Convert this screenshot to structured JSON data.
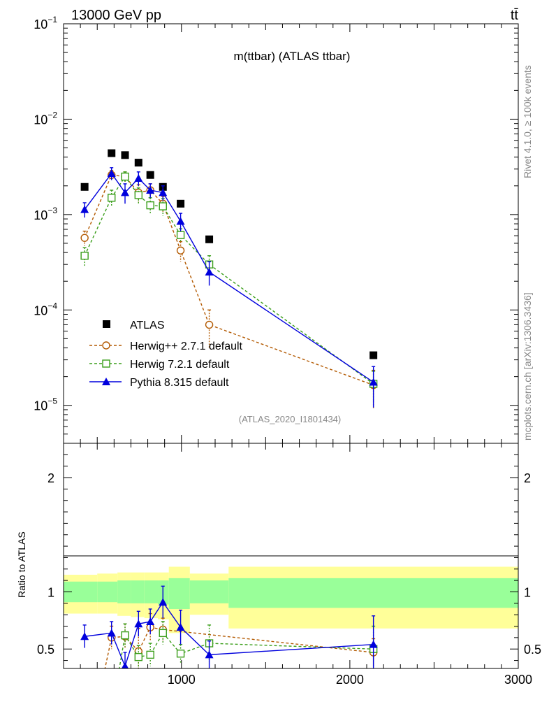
{
  "header": {
    "energy": "13000 GeV pp",
    "process": "tt̄",
    "side_top": "Rivet 4.1.0, ≥ 100k events",
    "side_bottom": "mcplots.cern.ch [arXiv:1306.3436]"
  },
  "colors": {
    "atlas": "#000000",
    "herwigpp": "#b35900",
    "herwig7": "#3a9e1a",
    "pythia": "#0000dd",
    "band_inner": "#99ff99",
    "band_outer": "#ffff99"
  },
  "chart_data": {
    "type": "line",
    "title": "m(ttbar) (ATLAS ttbar)",
    "analysis": "(ATLAS_2020_I1801434)",
    "xlim": [
      300,
      3000
    ],
    "x_ticks": [
      "1000",
      "2000",
      "3000"
    ],
    "upper": {
      "yscale": "log",
      "ylim": [
        4e-06,
        0.1
      ],
      "y_ticks": [
        {
          "base": "10",
          "exp": "−1",
          "value": 0.1
        },
        {
          "base": "10",
          "exp": "−2",
          "value": 0.01
        },
        {
          "base": "10",
          "exp": "−3",
          "value": 0.001
        },
        {
          "base": "10",
          "exp": "−4",
          "value": 0.0001
        },
        {
          "base": "10",
          "exp": "−5",
          "value": 1e-05
        }
      ],
      "series": [
        {
          "name": "ATLAS",
          "style": "square",
          "x": [
            425,
            585,
            665,
            745,
            815,
            890,
            995,
            1165,
            2140
          ],
          "y": [
            0.00195,
            0.0044,
            0.0042,
            0.0035,
            0.0026,
            0.00195,
            0.0013,
            0.00055,
            3.35e-05
          ]
        },
        {
          "name": "Herwig++ 2.7.1 default",
          "style": "open-circle",
          "x": [
            425,
            585,
            665,
            745,
            815,
            890,
            995,
            1165,
            2140
          ],
          "y": [
            0.00057,
            0.0026,
            0.0025,
            0.0017,
            0.0018,
            0.0013,
            0.00042,
            7e-05,
            1.63e-05
          ],
          "err": [
            0.0001,
            0.0003,
            0.0003,
            0.00035,
            0.0003,
            0.00025,
            0.0001,
            3e-05,
            7e-06
          ]
        },
        {
          "name": "Herwig 7.2.1 default",
          "style": "open-square",
          "x": [
            425,
            585,
            665,
            745,
            815,
            890,
            995,
            1165,
            2140
          ],
          "y": [
            0.00037,
            0.0015,
            0.0025,
            0.0016,
            0.00125,
            0.00122,
            0.00061,
            0.0003,
            1.68e-05
          ],
          "err": [
            8e-05,
            0.0003,
            0.0003,
            0.0003,
            0.00025,
            0.00025,
            0.0001,
            7e-05,
            6e-06
          ]
        },
        {
          "name": "Pythia 8.315 default",
          "style": "filled-triangle",
          "x": [
            425,
            585,
            665,
            745,
            815,
            890,
            995,
            1165,
            2140
          ],
          "y": [
            0.00113,
            0.0027,
            0.0017,
            0.0024,
            0.0018,
            0.0017,
            0.00085,
            0.00025,
            1.75e-05
          ],
          "err": [
            0.0002,
            0.0004,
            0.0004,
            0.0004,
            0.0003,
            0.0003,
            0.00018,
            7e-05,
            8e-06
          ]
        }
      ]
    },
    "lower": {
      "ylabel": "Ratio to ATLAS",
      "ylim": [
        0.33,
        2.3
      ],
      "y_ticks": [
        "0.5",
        "1",
        "2"
      ],
      "bands": [
        {
          "x0": 300,
          "x1": 500,
          "inner": [
            0.91,
            1.09
          ],
          "outer": [
            0.81,
            1.15
          ]
        },
        {
          "x0": 500,
          "x1": 620,
          "inner": [
            0.91,
            1.09
          ],
          "outer": [
            0.81,
            1.16
          ]
        },
        {
          "x0": 620,
          "x1": 700,
          "inner": [
            0.9,
            1.1
          ],
          "outer": [
            0.79,
            1.17
          ]
        },
        {
          "x0": 700,
          "x1": 780,
          "inner": [
            0.9,
            1.1
          ],
          "outer": [
            0.78,
            1.17
          ]
        },
        {
          "x0": 780,
          "x1": 860,
          "inner": [
            0.9,
            1.1
          ],
          "outer": [
            0.77,
            1.17
          ]
        },
        {
          "x0": 860,
          "x1": 925,
          "inner": [
            0.89,
            1.1
          ],
          "outer": [
            0.76,
            1.17
          ]
        },
        {
          "x0": 925,
          "x1": 1050,
          "inner": [
            0.85,
            1.12
          ],
          "outer": [
            0.64,
            1.22
          ]
        },
        {
          "x0": 1050,
          "x1": 1280,
          "inner": [
            0.9,
            1.1
          ],
          "outer": [
            0.8,
            1.16
          ]
        },
        {
          "x0": 1280,
          "x1": 3000,
          "inner": [
            0.86,
            1.12
          ],
          "outer": [
            0.68,
            1.22
          ]
        }
      ],
      "series": [
        {
          "name": "Herwig++ 2.7.1 default",
          "x": [
            585,
            665,
            745,
            815,
            890,
            2140
          ],
          "y": [
            0.6,
            0.61,
            0.48,
            0.69,
            0.67,
            0.47
          ],
          "err": [
            0.1,
            0.11,
            0.2,
            0.12,
            0.1,
            0.12
          ]
        },
        {
          "name": "Herwig 7.2.1 default",
          "x": [
            665,
            745,
            815,
            890,
            995,
            1165,
            2140
          ],
          "y": [
            0.62,
            0.43,
            0.45,
            0.64,
            0.46,
            0.55,
            0.5
          ],
          "err": [
            0.1,
            0.1,
            0.1,
            0.1,
            0.08,
            0.16,
            0.2
          ]
        },
        {
          "name": "Pythia 8.315 default",
          "x": [
            425,
            585,
            665,
            745,
            815,
            890,
            995,
            1165,
            2140
          ],
          "y": [
            0.61,
            0.64,
            0.35,
            0.72,
            0.74,
            0.91,
            0.69,
            0.45,
            0.54
          ],
          "err": [
            0.1,
            0.1,
            0.12,
            0.11,
            0.11,
            0.14,
            0.15,
            0.12,
            0.25
          ]
        }
      ]
    }
  }
}
